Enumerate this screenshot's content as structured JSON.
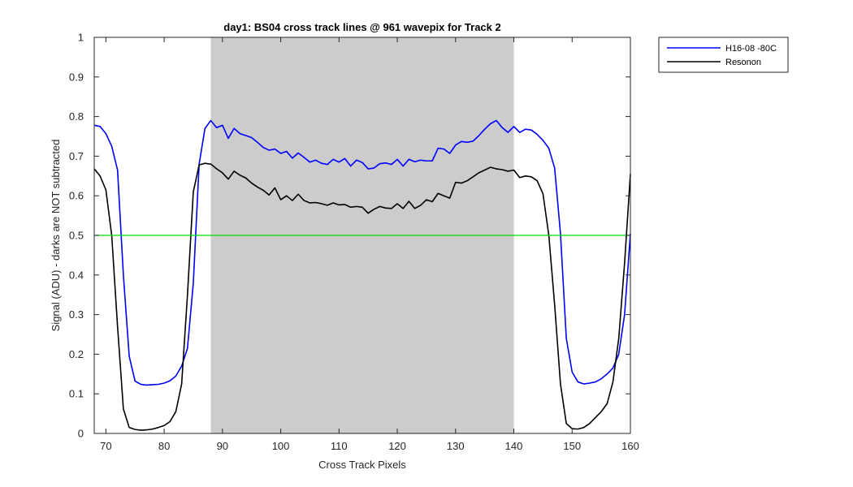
{
  "chart_data": {
    "type": "line",
    "title": "day1: BS04  cross track lines @ 961 wavepix for Track 2",
    "xlabel": "Cross Track Pixels",
    "ylabel": "Signal (ADU) - darks are NOT subtracted",
    "xlim": [
      68,
      160
    ],
    "ylim": [
      0,
      1
    ],
    "x_ticks": [
      "70",
      "80",
      "90",
      "100",
      "110",
      "120",
      "130",
      "140",
      "150",
      "160"
    ],
    "y_ticks": [
      "0",
      "0.1",
      "0.2",
      "0.3",
      "0.4",
      "0.5",
      "0.6",
      "0.7",
      "0.8",
      "0.9",
      "1"
    ],
    "x_tick_values": [
      70,
      80,
      90,
      100,
      110,
      120,
      130,
      140,
      150,
      160
    ],
    "y_tick_values": [
      0,
      0.1,
      0.2,
      0.3,
      0.4,
      0.5,
      0.6,
      0.7,
      0.8,
      0.9,
      1
    ],
    "grid": false,
    "legend_position": "outside-top-right",
    "shaded_region": {
      "x_start": 88,
      "x_end": 140,
      "color": "#cccccc"
    },
    "threshold_line": {
      "y": 0.5,
      "color": "#00dd00"
    },
    "series": [
      {
        "name": "H16-08 -80C",
        "color": "#0000ff",
        "x": [
          68,
          69,
          70,
          71,
          72,
          73,
          74,
          75,
          76,
          77,
          78,
          79,
          80,
          81,
          82,
          83,
          84,
          85,
          86,
          87,
          88,
          89,
          90,
          91,
          92,
          93,
          94,
          95,
          96,
          97,
          98,
          99,
          100,
          101,
          102,
          103,
          104,
          105,
          106,
          107,
          108,
          109,
          110,
          111,
          112,
          113,
          114,
          115,
          116,
          117,
          118,
          119,
          120,
          121,
          122,
          123,
          124,
          125,
          126,
          127,
          128,
          129,
          130,
          131,
          132,
          133,
          134,
          135,
          136,
          137,
          138,
          139,
          140,
          141,
          142,
          143,
          144,
          145,
          146,
          147,
          148,
          149,
          150,
          151,
          152,
          153,
          154,
          155,
          156,
          157,
          158,
          159,
          160
        ],
        "values": [
          0.778,
          0.775,
          0.757,
          0.725,
          0.665,
          0.4,
          0.195,
          0.132,
          0.124,
          0.122,
          0.123,
          0.124,
          0.127,
          0.133,
          0.145,
          0.17,
          0.215,
          0.38,
          0.68,
          0.77,
          0.79,
          0.772,
          0.778,
          0.745,
          0.77,
          0.757,
          0.752,
          0.747,
          0.735,
          0.722,
          0.715,
          0.718,
          0.707,
          0.712,
          0.695,
          0.708,
          0.697,
          0.685,
          0.69,
          0.682,
          0.679,
          0.692,
          0.685,
          0.694,
          0.675,
          0.69,
          0.684,
          0.668,
          0.67,
          0.681,
          0.683,
          0.679,
          0.692,
          0.675,
          0.692,
          0.686,
          0.69,
          0.688,
          0.688,
          0.72,
          0.718,
          0.707,
          0.728,
          0.737,
          0.735,
          0.738,
          0.752,
          0.768,
          0.782,
          0.79,
          0.772,
          0.76,
          0.775,
          0.76,
          0.768,
          0.766,
          0.755,
          0.74,
          0.72,
          0.67,
          0.505,
          0.24,
          0.155,
          0.13,
          0.125,
          0.127,
          0.13,
          0.138,
          0.15,
          0.165,
          0.2,
          0.3,
          0.505
        ]
      },
      {
        "name": "Resonon",
        "color": "#000000",
        "x": [
          68,
          69,
          70,
          71,
          72,
          73,
          74,
          75,
          76,
          77,
          78,
          79,
          80,
          81,
          82,
          83,
          84,
          85,
          86,
          87,
          88,
          89,
          90,
          91,
          92,
          93,
          94,
          95,
          96,
          97,
          98,
          99,
          100,
          101,
          102,
          103,
          104,
          105,
          106,
          107,
          108,
          109,
          110,
          111,
          112,
          113,
          114,
          115,
          116,
          117,
          118,
          119,
          120,
          121,
          122,
          123,
          124,
          125,
          126,
          127,
          128,
          129,
          130,
          131,
          132,
          133,
          134,
          135,
          136,
          137,
          138,
          139,
          140,
          141,
          142,
          143,
          144,
          145,
          146,
          147,
          148,
          149,
          150,
          151,
          152,
          153,
          154,
          155,
          156,
          157,
          158,
          159,
          160
        ],
        "values": [
          0.668,
          0.65,
          0.615,
          0.5,
          0.27,
          0.062,
          0.015,
          0.01,
          0.008,
          0.009,
          0.011,
          0.015,
          0.02,
          0.03,
          0.055,
          0.125,
          0.35,
          0.61,
          0.678,
          0.682,
          0.68,
          0.668,
          0.658,
          0.642,
          0.662,
          0.652,
          0.645,
          0.632,
          0.622,
          0.614,
          0.602,
          0.62,
          0.59,
          0.6,
          0.588,
          0.604,
          0.588,
          0.582,
          0.583,
          0.58,
          0.576,
          0.582,
          0.577,
          0.578,
          0.571,
          0.573,
          0.571,
          0.556,
          0.566,
          0.573,
          0.569,
          0.568,
          0.58,
          0.568,
          0.586,
          0.568,
          0.576,
          0.59,
          0.585,
          0.606,
          0.6,
          0.594,
          0.634,
          0.632,
          0.638,
          0.648,
          0.658,
          0.665,
          0.672,
          0.668,
          0.666,
          0.662,
          0.665,
          0.646,
          0.65,
          0.648,
          0.638,
          0.605,
          0.5,
          0.325,
          0.125,
          0.025,
          0.012,
          0.011,
          0.015,
          0.025,
          0.04,
          0.055,
          0.075,
          0.13,
          0.24,
          0.43,
          0.655
        ]
      }
    ]
  }
}
